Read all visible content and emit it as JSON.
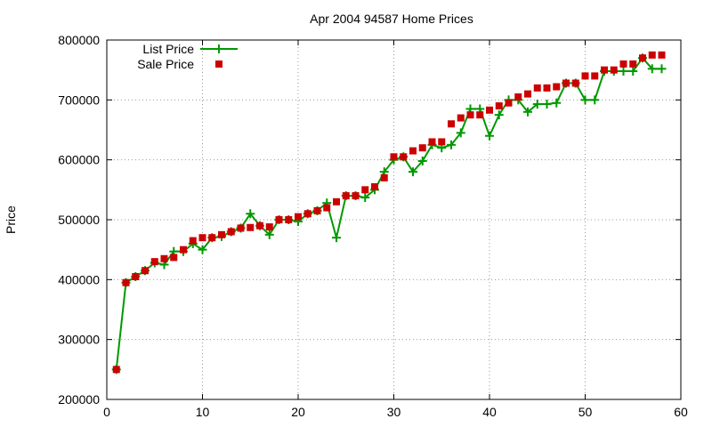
{
  "chart_data": {
    "type": "line",
    "title": "Apr 2004 94587 Home Prices",
    "xlabel": "",
    "ylabel": "Price",
    "xlim": [
      0,
      60
    ],
    "ylim": [
      200000,
      800000
    ],
    "x_ticks": [
      0,
      10,
      20,
      30,
      40,
      50,
      60
    ],
    "y_ticks": [
      200000,
      300000,
      400000,
      500000,
      600000,
      700000,
      800000
    ],
    "grid": true,
    "legend_position": "top-left",
    "series": [
      {
        "name": "List Price",
        "style": "line+plus",
        "color": "#009900",
        "x": [
          1,
          2,
          3,
          4,
          5,
          6,
          7,
          8,
          9,
          10,
          11,
          12,
          13,
          14,
          15,
          16,
          17,
          18,
          19,
          20,
          21,
          22,
          23,
          24,
          25,
          26,
          27,
          28,
          29,
          30,
          31,
          32,
          33,
          34,
          35,
          36,
          37,
          38,
          39,
          40,
          41,
          42,
          43,
          44,
          45,
          46,
          47,
          48,
          49,
          50,
          51,
          52,
          53,
          54,
          55,
          56,
          57,
          58
        ],
        "y": [
          250000,
          395000,
          405000,
          415000,
          428000,
          425000,
          447000,
          447000,
          460000,
          450000,
          470000,
          472000,
          480000,
          486000,
          510000,
          490000,
          475000,
          500000,
          500000,
          497000,
          510000,
          515000,
          528000,
          470000,
          540000,
          540000,
          537000,
          550000,
          580000,
          600000,
          605000,
          580000,
          598000,
          625000,
          620000,
          625000,
          645000,
          685000,
          685000,
          640000,
          675000,
          700000,
          700000,
          680000,
          693000,
          693000,
          695000,
          728000,
          728000,
          700000,
          700000,
          748000,
          748000,
          748000,
          748000,
          770000,
          752000,
          752000
        ]
      },
      {
        "name": "Sale Price",
        "style": "square",
        "color": "#cc0000",
        "x": [
          1,
          2,
          3,
          4,
          5,
          6,
          7,
          8,
          9,
          10,
          11,
          12,
          13,
          14,
          15,
          16,
          17,
          18,
          19,
          20,
          21,
          22,
          23,
          24,
          25,
          26,
          27,
          28,
          29,
          30,
          31,
          32,
          33,
          34,
          35,
          36,
          37,
          38,
          39,
          40,
          41,
          42,
          43,
          44,
          45,
          46,
          47,
          48,
          49,
          50,
          51,
          52,
          53,
          54,
          55,
          56,
          57,
          58
        ],
        "y": [
          250000,
          395000,
          405000,
          415000,
          430000,
          435000,
          437000,
          450000,
          465000,
          470000,
          470000,
          475000,
          480000,
          486000,
          487000,
          490000,
          488000,
          500000,
          500000,
          505000,
          510000,
          515000,
          520000,
          530000,
          540000,
          540000,
          550000,
          555000,
          570000,
          605000,
          605000,
          615000,
          620000,
          630000,
          630000,
          660000,
          670000,
          675000,
          675000,
          683000,
          690000,
          695000,
          705000,
          710000,
          720000,
          720000,
          722000,
          728000,
          728000,
          740000,
          740000,
          750000,
          750000,
          760000,
          760000,
          770000,
          775000,
          775000
        ]
      }
    ]
  }
}
